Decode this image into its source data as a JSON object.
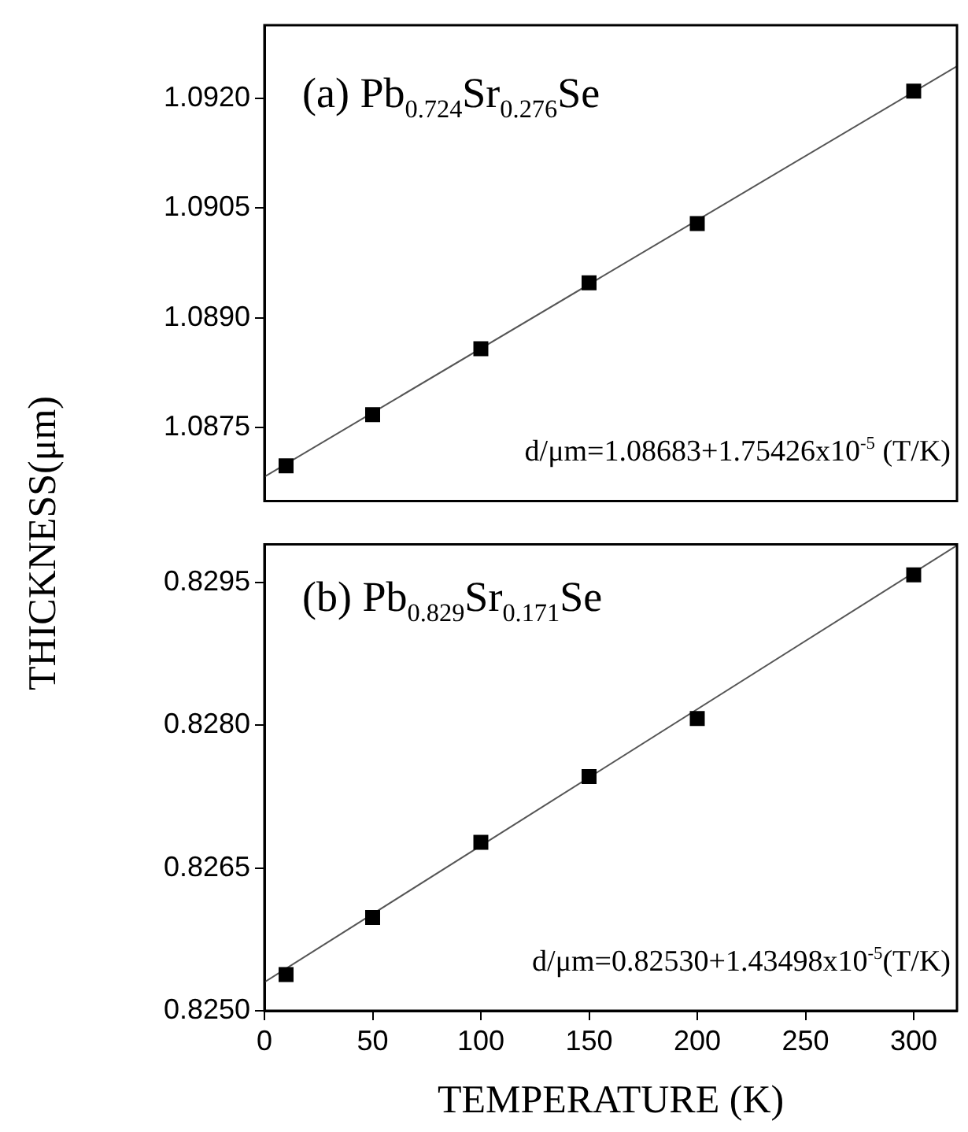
{
  "chart_data": [
    {
      "type": "scatter",
      "ylabel": "THICKNESS(μm)",
      "annotations": [
        "(a)  Pb$_{0.724}$Sr$_{0.276}$Se",
        "d/μm=1.08683+1.75426x10$^{-5}$ (T/K)"
      ],
      "tick_labels": "y",
      "grid": false,
      "legend": false,
      "xlim": [
        0,
        320
      ],
      "xticks": [
        0,
        50,
        100,
        150,
        200,
        250,
        300
      ],
      "ylim": [
        1.0865,
        1.093
      ],
      "yticks": [
        1.0875,
        {
          "value": 1.089,
          "label": "1.0890"
        },
        1.0905,
        {
          "value": 1.092,
          "label": "1.0920"
        }
      ],
      "series": [
        {
          "marker": "square",
          "color": "#000000",
          "x": [
            10,
            50,
            100,
            150,
            200,
            300
          ],
          "values": [
            1.08698,
            1.08768,
            1.08858,
            1.08948,
            1.09029,
            1.0921
          ]
        },
        {
          "type": "line",
          "marker": "none",
          "color": "#555555",
          "x": [
            0,
            320
          ],
          "values": [
            1.08683,
            1.09244
          ]
        }
      ]
    },
    {
      "type": "scatter",
      "xlabel": "TEMPERATURE (K)",
      "annotations": [
        "(b)  Pb$_{0.829}$Sr$_{0.171}$Se",
        "d/μm=0.82530+1.43498x10$^{-5}$(T/K)"
      ],
      "grid": false,
      "legend": false,
      "xlim": [
        0,
        320
      ],
      "xticks": [
        0,
        50,
        100,
        150,
        200,
        250,
        300
      ],
      "ylim": [
        0.825,
        0.8299
      ],
      "yticks": [
        {
          "value": 0.825,
          "label": "0.8250"
        },
        0.8265,
        {
          "value": 0.828,
          "label": "0.8280"
        },
        0.8295
      ],
      "series": [
        {
          "marker": "square",
          "color": "#000000",
          "x": [
            10,
            50,
            100,
            150,
            200,
            300
          ],
          "values": [
            0.82538,
            0.82598,
            0.82677,
            0.82746,
            0.82807,
            0.82958
          ]
        },
        {
          "type": "line",
          "marker": "none",
          "color": "#555555",
          "x": [
            0,
            320
          ],
          "values": [
            0.8253,
            0.82989
          ]
        }
      ]
    }
  ]
}
